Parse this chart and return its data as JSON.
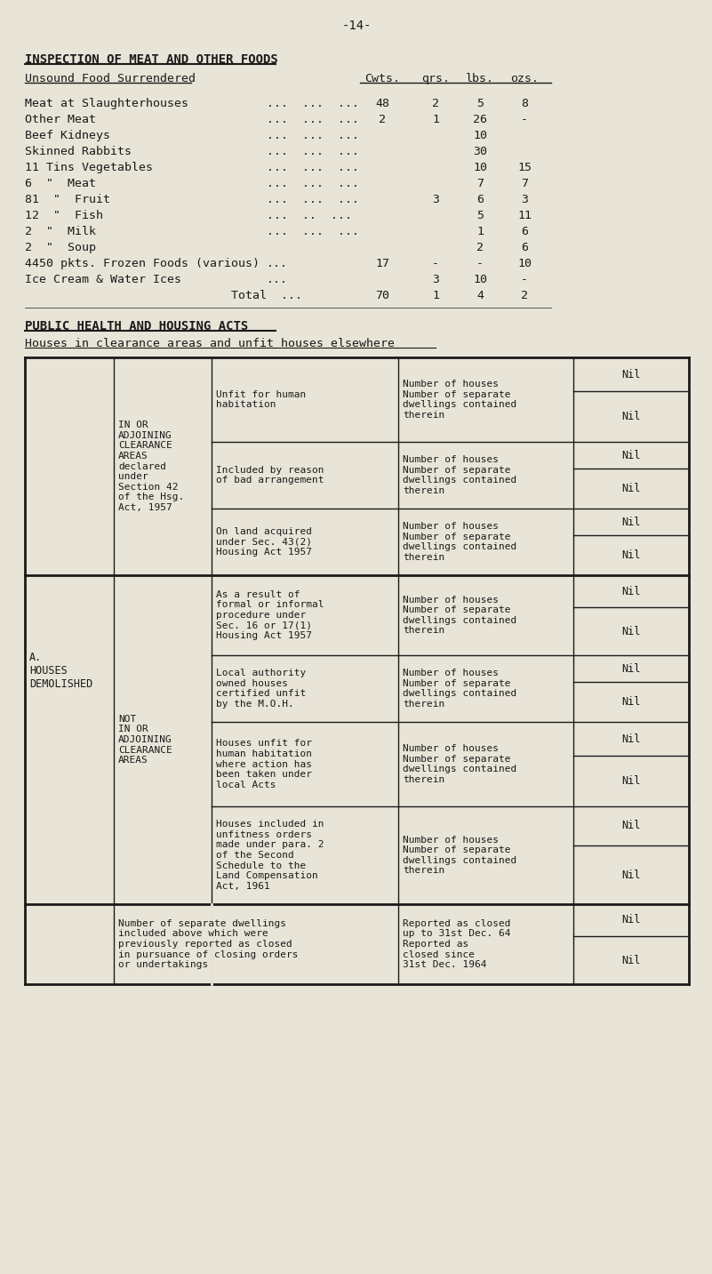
{
  "bg_color": "#e8e4d8",
  "text_color": "#1a1a1a",
  "page_number": "-14-",
  "title1": "INSPECTION OF MEAT AND OTHER FOODS",
  "subtitle1": "Unsound Food Surrendered",
  "col_headers": [
    "Cwts.",
    "qrs.",
    "lbs.",
    "ozs."
  ],
  "food_rows": [
    {
      "label": "Meat at Slaughterhouses",
      "dots": "...  ...  ...",
      "cwts": "48",
      "qrs": "2",
      "lbs": "5",
      "ozs": "8"
    },
    {
      "label": "Other Meat",
      "dots": "...  ...  ...",
      "cwts": "2",
      "qrs": "1",
      "lbs": "26",
      "ozs": "-"
    },
    {
      "label": "Beef Kidneys",
      "dots": "...  ...  ...",
      "cwts": "",
      "qrs": "",
      "lbs": "10",
      "ozs": ""
    },
    {
      "label": "Skinned Rabbits",
      "dots": "...  ...  ...",
      "cwts": "",
      "qrs": "",
      "lbs": "30",
      "ozs": ""
    },
    {
      "label": "11 Tins Vegetables",
      "dots": "...  ...  ...",
      "cwts": "",
      "qrs": "",
      "lbs": "10",
      "ozs": "15"
    },
    {
      "label": "6  \"  Meat",
      "dots": "...  ...  ...",
      "cwts": "",
      "qrs": "",
      "lbs": "7",
      "ozs": "7"
    },
    {
      "label": "81  \"  Fruit",
      "dots": "...  ...  ...",
      "cwts": "",
      "qrs": "3",
      "lbs": "6",
      "ozs": "3"
    },
    {
      "label": "12  \"  Fish",
      "dots": "...  ..  ...",
      "cwts": "",
      "qrs": "",
      "lbs": "5",
      "ozs": "11"
    },
    {
      "label": "2  \"  Milk",
      "dots": "...  ...  ...",
      "cwts": "",
      "qrs": "",
      "lbs": "1",
      "ozs": "6"
    },
    {
      "label": "2  \"  Soup",
      "dots": "",
      "cwts": "",
      "qrs": "",
      "lbs": "2",
      "ozs": "6"
    },
    {
      "label": "4450 pkts. Frozen Foods (various)",
      "dots": "...",
      "cwts": "17",
      "qrs": "-",
      "lbs": "-",
      "ozs": "10"
    },
    {
      "label": "Ice Cream & Water Ices",
      "dots": "...",
      "cwts": "",
      "qrs": "3",
      "lbs": "10",
      "ozs": "-"
    },
    {
      "label": "",
      "dots": "Total  ...",
      "cwts": "70",
      "qrs": "1",
      "lbs": "4",
      "ozs": "2"
    }
  ],
  "title2": "PUBLIC HEALTH AND HOUSING ACTS",
  "subtitle2": "Houses in clearance areas and unfit houses elsewhere",
  "table": {
    "col_a_label": "A.\nHOUSES\nDEMOLISHED",
    "rows": [
      {
        "col2": "IN OR\nADJOINING\nCLEARANCE\nAREAS\ndeclared\nunder\nSection 42\nof the Hsg.\nAct, 1957",
        "col3": "Unfit for human\nhabitation",
        "col4": "Number of houses\nNumber of separate\ndwellings contained\ntherein",
        "val1": "Nil",
        "val2": "Nil",
        "span_col2": true
      },
      {
        "col2": "",
        "col3": "Included by reason\nof bad arrangement",
        "col4": "Number of houses\nNumber of separate\ndwellings contained\ntherein",
        "val1": "Nil",
        "val2": "Nil",
        "span_col2": false
      },
      {
        "col2": "",
        "col3": "On land acquired\nunder Sec. 43(2)\nHousing Act 1957",
        "col4": "Number of houses\nNumber of separate\ndwellings contained\ntherein",
        "val1": "Nil",
        "val2": "Nil",
        "span_col2": false
      },
      {
        "col2": "NOT\nIN OR\nADJOINING\nCLEARANCE\nAREAS",
        "col3": "As a result of\nformal or informal\nprocedure under\nSec. 16 or 17(1)\nHousing Act 1957",
        "col4": "Number of houses\nNumber of separate\ndwellings contained\ntherein",
        "val1": "Nil",
        "val2": "Nil",
        "span_col2": true
      },
      {
        "col2": "",
        "col3": "Local authority\nowned houses\ncertified unfit\nby the M.O.H.",
        "col4": "Number of houses\nNumber of separate\ndwellings contained\ntherein",
        "val1": "Nil",
        "val2": "Nil",
        "span_col2": false
      },
      {
        "col2": "",
        "col3": "Houses unfit for\nhuman habitation\nwhere action has\nbeen taken under\nlocal Acts",
        "col4": "Number of houses\nNumber of separate\ndwellings contained\ntherein",
        "val1": "Nil",
        "val2": "Nil",
        "span_col2": false
      },
      {
        "col2": "",
        "col3": "Houses included in\nunfitness orders\nmade under para. 2\nof the Second\nSchedule to the\nLand Compensation\nAct, 1961",
        "col4": "Number of houses\nNumber of separate\ndwellings contained\ntherein",
        "val1": "Nil",
        "val2": "Nil",
        "span_col2": false
      },
      {
        "col2": "Number of separate dwellings\nincluded above which were\npreviously reported as closed\nin pursuance of closing orders\nor undertakings",
        "col3": "",
        "col4": "Reported as closed\nup to 31st Dec. 64\nReported as\nclosed since\n31st Dec. 1964",
        "val1": "Nil",
        "val2": "Nil",
        "span_col2": true,
        "last_row": true
      }
    ]
  }
}
